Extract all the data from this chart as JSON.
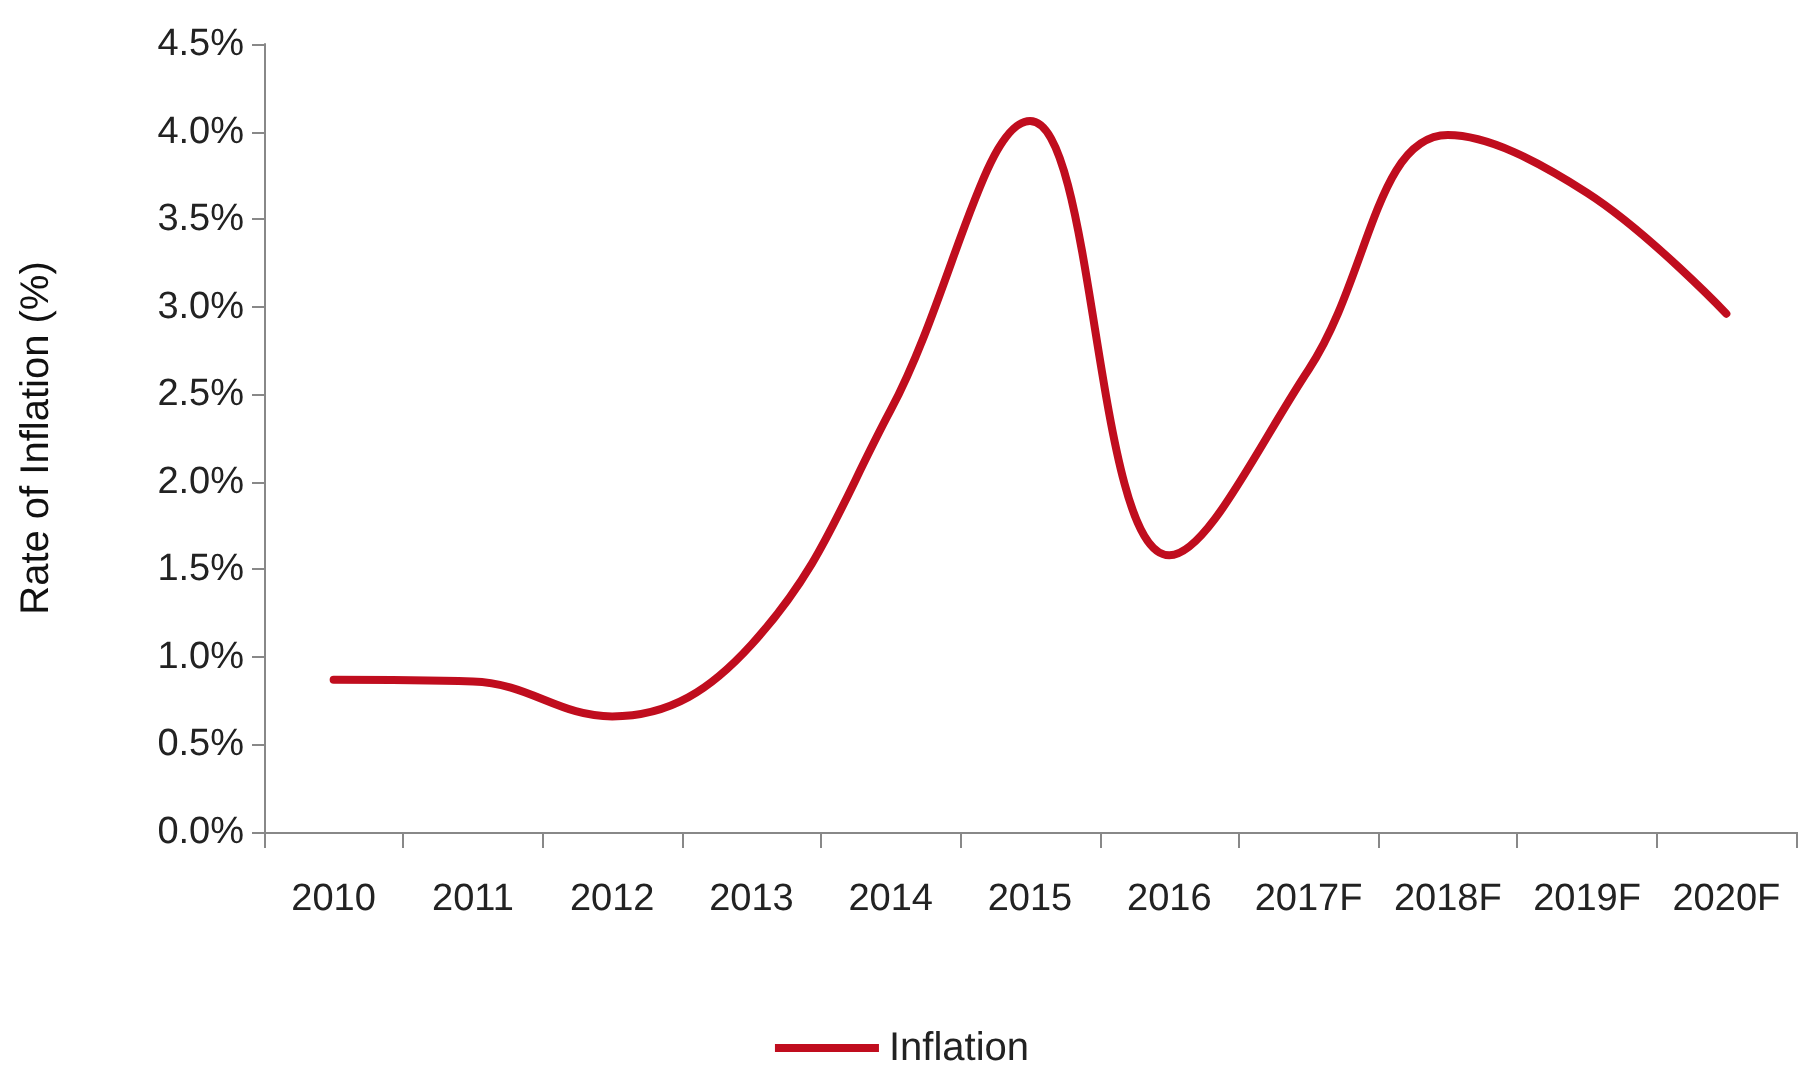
{
  "chart_data": {
    "type": "line",
    "ylabel": "Rate of Inflation (%)",
    "categories": [
      "2010",
      "2011",
      "2012",
      "2013",
      "2014",
      "2015",
      "2016",
      "2017F",
      "2018F",
      "2019F",
      "2020F"
    ],
    "series": [
      {
        "name": "Inflation",
        "color": "#c00d1e",
        "values": [
          0.87,
          0.86,
          0.66,
          1.07,
          2.41,
          4.06,
          1.58,
          2.64,
          3.98,
          3.65,
          2.96
        ]
      }
    ],
    "ylim": [
      0,
      4.5
    ],
    "yticks": [
      {
        "value": 0,
        "label": "0.0%"
      },
      {
        "value": 0.5,
        "label": "0.5%"
      },
      {
        "value": 1,
        "label": "1.0%"
      },
      {
        "value": 1.5,
        "label": "1.5%"
      },
      {
        "value": 2,
        "label": "2.0%"
      },
      {
        "value": 2.5,
        "label": "2.5%"
      },
      {
        "value": 3,
        "label": "3.0%"
      },
      {
        "value": 3.5,
        "label": "3.5%"
      },
      {
        "value": 4,
        "label": "4.0%"
      },
      {
        "value": 4.5,
        "label": "4.5%"
      }
    ],
    "grid": false,
    "legend": "bottom",
    "marker": "none",
    "line_style": "solid"
  }
}
